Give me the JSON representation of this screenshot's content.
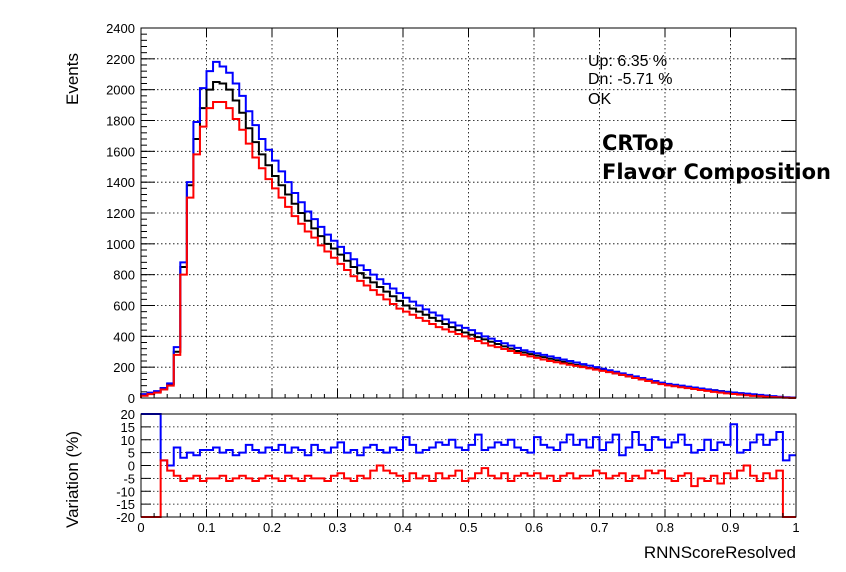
{
  "chart_data": [
    {
      "type": "line",
      "drawstyle": "steps",
      "ylabel": "Events",
      "xlim": [
        0,
        1
      ],
      "ylim": [
        0,
        2400
      ],
      "grid": true,
      "x_bin_width": 0.01,
      "yticks": [
        0,
        200,
        400,
        600,
        800,
        1000,
        1200,
        1400,
        1600,
        1800,
        2000,
        2200,
        2400
      ],
      "annotations": {
        "up": "Up: 6.35 %",
        "dn": "Dn: -5.71 %",
        "ok": "OK",
        "region": "CRTop",
        "systematic": "Flavor Composition"
      },
      "colors": {
        "up": "#0000ff",
        "dn": "#ff0000",
        "ok": "#33cc33",
        "nominal": "#000000"
      },
      "series": [
        {
          "key": "nominal",
          "color": "#000000",
          "values": [
            20,
            30,
            40,
            60,
            90,
            300,
            850,
            1380,
            1680,
            1880,
            2000,
            2050,
            2040,
            2000,
            1930,
            1850,
            1750,
            1660,
            1580,
            1510,
            1440,
            1380,
            1320,
            1260,
            1200,
            1150,
            1100,
            1050,
            1000,
            970,
            930,
            890,
            850,
            810,
            780,
            750,
            720,
            690,
            660,
            630,
            600,
            580,
            560,
            540,
            520,
            500,
            480,
            460,
            440,
            425,
            410,
            395,
            380,
            365,
            350,
            335,
            320,
            305,
            295,
            285,
            275,
            265,
            255,
            245,
            235,
            225,
            215,
            205,
            195,
            190,
            180,
            170,
            160,
            150,
            140,
            130,
            120,
            110,
            100,
            92,
            85,
            80,
            75,
            70,
            65,
            60,
            55,
            50,
            45,
            40,
            35,
            30,
            25,
            20,
            16,
            12,
            8,
            5,
            3,
            1
          ]
        },
        {
          "key": "up",
          "color": "#0000ff",
          "values": [
            25,
            35,
            45,
            65,
            95,
            330,
            880,
            1400,
            1790,
            2010,
            2120,
            2180,
            2150,
            2110,
            2040,
            1960,
            1860,
            1770,
            1680,
            1610,
            1540,
            1470,
            1400,
            1330,
            1270,
            1210,
            1160,
            1110,
            1060,
            1020,
            980,
            940,
            900,
            860,
            830,
            800,
            770,
            740,
            710,
            680,
            650,
            625,
            600,
            575,
            555,
            535,
            510,
            490,
            470,
            455,
            440,
            420,
            400,
            385,
            370,
            355,
            340,
            325,
            310,
            300,
            290,
            280,
            270,
            260,
            250,
            240,
            230,
            220,
            210,
            200,
            190,
            180,
            170,
            160,
            150,
            140,
            130,
            120,
            110,
            100,
            92,
            86,
            80,
            74,
            68,
            62,
            56,
            50,
            44,
            40,
            36,
            32,
            28,
            24,
            20,
            16,
            12,
            8,
            5,
            3
          ]
        },
        {
          "key": "dn",
          "color": "#ff0000",
          "values": [
            15,
            25,
            35,
            55,
            80,
            280,
            800,
            1300,
            1580,
            1760,
            1880,
            1920,
            1920,
            1880,
            1810,
            1740,
            1650,
            1560,
            1490,
            1420,
            1360,
            1300,
            1240,
            1180,
            1130,
            1080,
            1040,
            990,
            950,
            910,
            870,
            830,
            790,
            760,
            730,
            700,
            670,
            640,
            610,
            580,
            560,
            540,
            520,
            500,
            480,
            460,
            445,
            430,
            415,
            400,
            385,
            370,
            355,
            340,
            330,
            318,
            305,
            292,
            280,
            270,
            260,
            250,
            240,
            232,
            224,
            216,
            208,
            200,
            192,
            184,
            176,
            168,
            160,
            150,
            140,
            130,
            120,
            110,
            100,
            90,
            82,
            76,
            70,
            64,
            58,
            52,
            46,
            40,
            35,
            30,
            26,
            22,
            18,
            14,
            11,
            8,
            6,
            4,
            2,
            1
          ]
        }
      ]
    },
    {
      "type": "line",
      "drawstyle": "steps",
      "xlabel": "RNNScoreResolved",
      "ylabel": "Variation (%)",
      "xlim": [
        0,
        1
      ],
      "ylim": [
        -20,
        20
      ],
      "grid": true,
      "x_bin_width": 0.01,
      "xticks": [
        0,
        0.1,
        0.2,
        0.3,
        0.4,
        0.5,
        0.6,
        0.7,
        0.8,
        0.9,
        1
      ],
      "xtick_labels": [
        "0",
        "0.1",
        "0.2",
        "0.3",
        "0.4",
        "0.5",
        "0.6",
        "0.7",
        "0.8",
        "0.9",
        "1"
      ],
      "yticks": [
        -20,
        -15,
        -10,
        -5,
        0,
        5,
        10,
        15,
        20
      ],
      "series": [
        {
          "key": "up",
          "color": "#0000ff",
          "values": [
            20,
            20,
            20,
            2,
            0,
            7,
            3,
            5,
            4,
            6,
            6,
            7,
            5,
            6,
            4,
            5,
            8,
            6,
            5,
            7,
            6,
            8,
            5,
            7,
            6,
            4,
            8,
            6,
            5,
            7,
            9,
            5,
            6,
            4,
            7,
            8,
            6,
            5,
            7,
            6,
            11,
            8,
            5,
            6,
            7,
            9,
            8,
            10,
            7,
            6,
            8,
            12,
            6,
            7,
            9,
            8,
            10,
            7,
            6,
            5,
            11,
            8,
            7,
            6,
            9,
            12,
            8,
            10,
            7,
            11,
            6,
            9,
            12,
            4,
            7,
            13,
            8,
            6,
            11,
            10,
            7,
            9,
            12,
            8,
            5,
            6,
            10,
            6,
            9,
            8,
            16,
            5,
            6,
            9,
            12,
            8,
            10,
            13,
            2,
            4
          ]
        },
        {
          "key": "dn",
          "color": "#ff0000",
          "values": [
            -20,
            -20,
            -20,
            2,
            -2,
            -4,
            -6,
            -5,
            -4,
            -6,
            -5,
            -5,
            -4,
            -6,
            -5,
            -4,
            -5,
            -6,
            -5,
            -4,
            -5,
            -6,
            -4,
            -5,
            -6,
            -4,
            -5,
            -5,
            -6,
            -4,
            -3,
            -5,
            -6,
            -4,
            -5,
            -2,
            0,
            -2,
            -3,
            -4,
            -6,
            -3,
            -5,
            -4,
            -6,
            -3,
            -5,
            -4,
            -2,
            -6,
            -5,
            -3,
            -1,
            -4,
            -5,
            -3,
            -6,
            -4,
            -3,
            -4,
            -3,
            -5,
            -4,
            -6,
            -4,
            -3,
            -5,
            -4,
            -4,
            -2,
            -3,
            -5,
            -4,
            -3,
            -6,
            -4,
            -5,
            -2,
            -3,
            -2,
            -5,
            -6,
            -4,
            -3,
            -8,
            -5,
            -6,
            -4,
            -7,
            -3,
            -5,
            -2,
            0,
            -4,
            -6,
            -3,
            -5,
            -2,
            -20,
            -20
          ]
        }
      ]
    }
  ]
}
